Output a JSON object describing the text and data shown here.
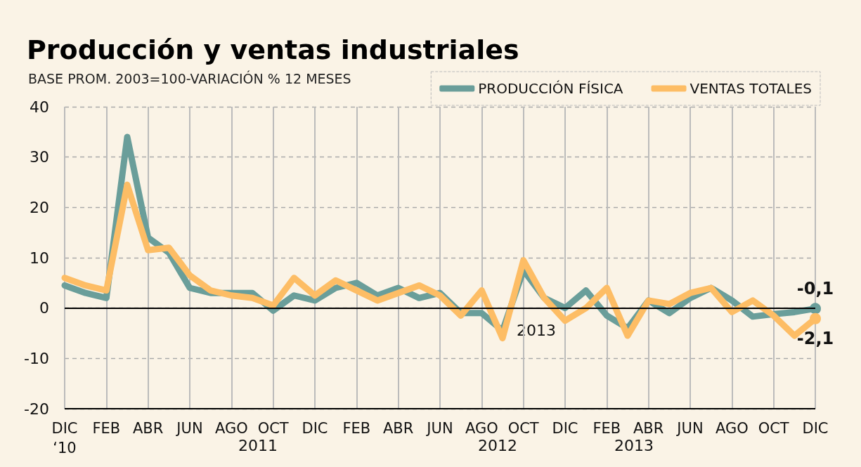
{
  "chart_data": {
    "type": "line",
    "title": "Producción y ventas industriales",
    "subtitle": "BASE PROM. 2003=100-VARIACIÓN % 12 MESES",
    "categories": [
      "DIC\n‘10",
      null,
      "FEB",
      null,
      "ABR",
      null,
      "JUN",
      null,
      "AGO",
      null,
      "OCT",
      null,
      "DIC",
      null,
      "FEB",
      null,
      "ABR",
      null,
      "JUN",
      null,
      "AGO",
      null,
      "OCT",
      null,
      "DIC",
      null,
      "FEB",
      null,
      "ABR",
      null,
      "JUN",
      null,
      "AGO",
      null,
      "OCT",
      null,
      "DIC"
    ],
    "series": [
      {
        "name": "PRODUCCIÓN FÍSICA",
        "color": "#6a9e9a",
        "values": [
          4.5,
          3,
          2,
          34,
          14,
          11,
          4,
          3,
          3,
          3,
          -0.5,
          2.5,
          1.5,
          4,
          5,
          2.5,
          4,
          2,
          3,
          -1,
          -1,
          -4.5,
          7.5,
          2,
          0,
          3.5,
          -1.5,
          -4,
          1.5,
          -1,
          2,
          4,
          1.5,
          -1.7,
          -1.2,
          -0.8,
          -0.1
        ],
        "value_labels": [
          null,
          null,
          null,
          null,
          null,
          null,
          null,
          null,
          null,
          null,
          null,
          null,
          null,
          null,
          null,
          null,
          null,
          null,
          null,
          null,
          null,
          null,
          null,
          null,
          null,
          null,
          null,
          null,
          null,
          null,
          null,
          null,
          null,
          null,
          null,
          null,
          "-0,1"
        ]
      },
      {
        "name": "VENTAS TOTALES",
        "color": "#fdbd65",
        "values": [
          6,
          4.5,
          3.5,
          24.5,
          11.5,
          12,
          6.5,
          3.5,
          2.5,
          2,
          0.5,
          6,
          2.5,
          5.5,
          3.5,
          1.5,
          3,
          4.5,
          2.5,
          -1.5,
          3.5,
          -6,
          9.5,
          2,
          -2.5,
          0,
          4,
          -5.5,
          1.5,
          0.8,
          3,
          4,
          -0.8,
          1.5,
          -1.5,
          -5.5,
          -2.1
        ],
        "value_labels": [
          null,
          null,
          null,
          null,
          null,
          null,
          null,
          null,
          null,
          null,
          null,
          null,
          null,
          null,
          null,
          null,
          null,
          null,
          null,
          null,
          null,
          null,
          null,
          null,
          null,
          null,
          null,
          null,
          null,
          null,
          null,
          null,
          null,
          null,
          null,
          null,
          "-2,1"
        ]
      }
    ],
    "ylim": [
      -20,
      40
    ],
    "yticks": [
      -20,
      -10,
      0,
      10,
      20,
      30,
      40
    ],
    "grid": true,
    "legend": "top right",
    "ref_lines": [
      {
        "axis": "y",
        "value": 0,
        "color": "#000000"
      }
    ],
    "annotations": [
      "2011",
      "2012",
      "2013",
      "2013"
    ]
  }
}
